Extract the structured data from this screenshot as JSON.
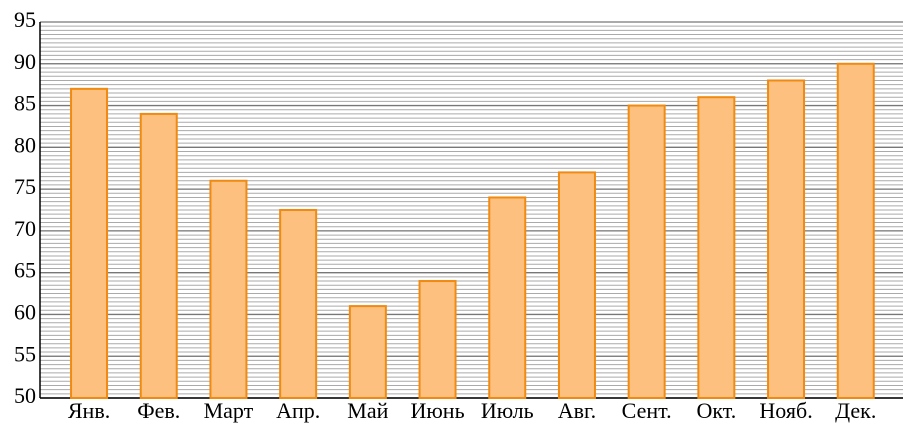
{
  "chart_data": {
    "type": "bar",
    "categories": [
      "Янв.",
      "Фев.",
      "Март",
      "Апр.",
      "Май",
      "Июнь",
      "Июль",
      "Авг.",
      "Сент.",
      "Окт.",
      "Нояб.",
      "Дек."
    ],
    "values": [
      87,
      84,
      76,
      72.5,
      61,
      64,
      74,
      77,
      85,
      86,
      88,
      90
    ],
    "color": "#fdc07e",
    "edge_color": "#f08a10",
    "ylim": [
      50,
      95
    ],
    "yticks": [
      50,
      55,
      60,
      65,
      70,
      75,
      80,
      85,
      90,
      95
    ],
    "grid": true,
    "minor_grid": 0.5
  }
}
